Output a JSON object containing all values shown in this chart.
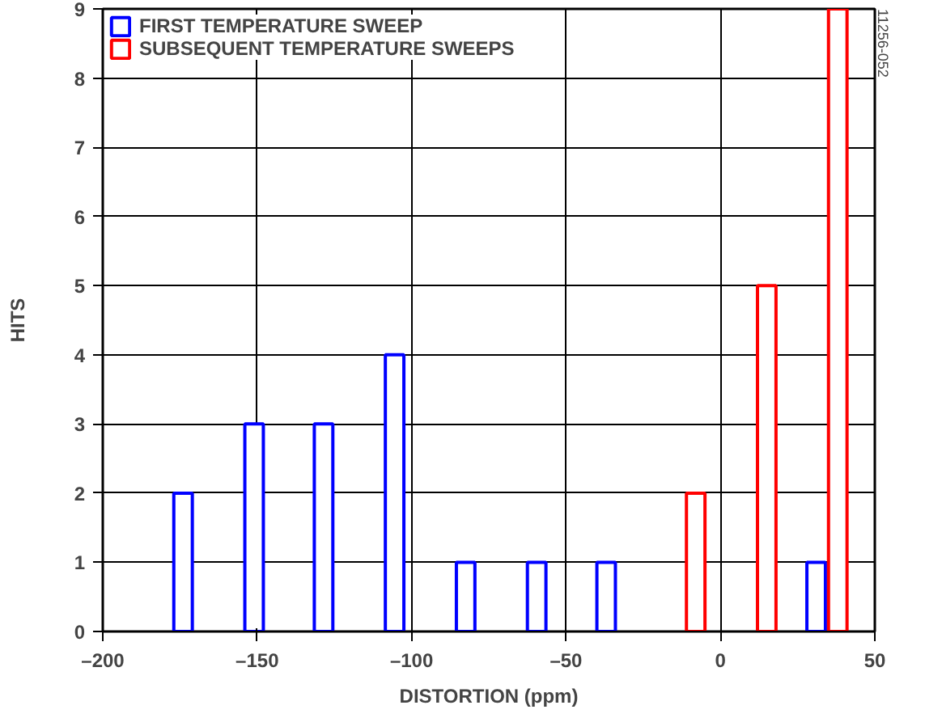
{
  "chart_data": {
    "type": "bar",
    "xlabel": "DISTORTION (ppm)",
    "ylabel": "HITS",
    "xlim": [
      -200,
      50
    ],
    "ylim": [
      0,
      9
    ],
    "xticks": [
      {
        "value": -200,
        "label": "–200"
      },
      {
        "value": -150,
        "label": "–150"
      },
      {
        "value": -100,
        "label": "–100"
      },
      {
        "value": -50,
        "label": "–50"
      },
      0,
      50
    ],
    "yticks": [
      0,
      1,
      2,
      3,
      4,
      5,
      6,
      7,
      8,
      9
    ],
    "grid": true,
    "legend": "top left",
    "series": [
      {
        "name": "FIRST TEMPERATURE SWEEP",
        "color": "#0000ff",
        "x": [
          -174,
          -151,
          -128.5,
          -105.5,
          -82.5,
          -59.5,
          -37,
          31
        ],
        "values": [
          2,
          3,
          3,
          4,
          1,
          1,
          1,
          1
        ]
      },
      {
        "name": "SUBSEQUENT TEMPERATURE SWEEPS",
        "color": "#ff0000",
        "x": [
          -8,
          15,
          38
        ],
        "values": [
          2,
          5,
          9
        ]
      }
    ],
    "annotations": [
      "11256-052"
    ]
  }
}
